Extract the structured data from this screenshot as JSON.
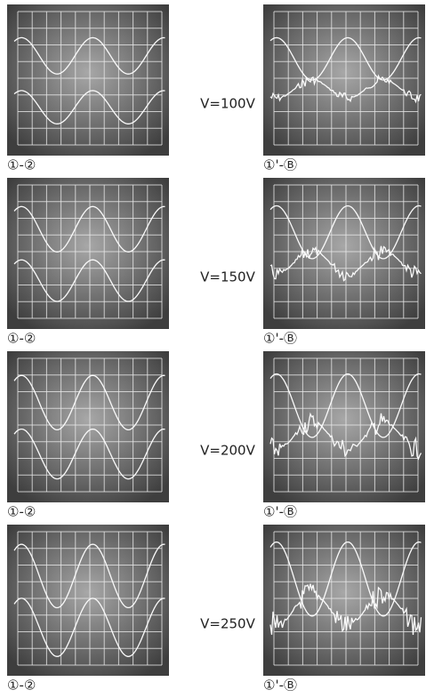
{
  "rows": [
    {
      "left_label": "①-②",
      "voltage": "V=100V",
      "right_label": "①'-Ⓑ"
    },
    {
      "left_label": "①-②",
      "voltage": "V=150V",
      "right_label": "①'-Ⓑ"
    },
    {
      "left_label": "①-②",
      "voltage": "V=200V",
      "right_label": "①'-Ⓑ"
    },
    {
      "left_label": "①-②",
      "voltage": "V=250V",
      "right_label": "①'-Ⓑ"
    }
  ]
}
